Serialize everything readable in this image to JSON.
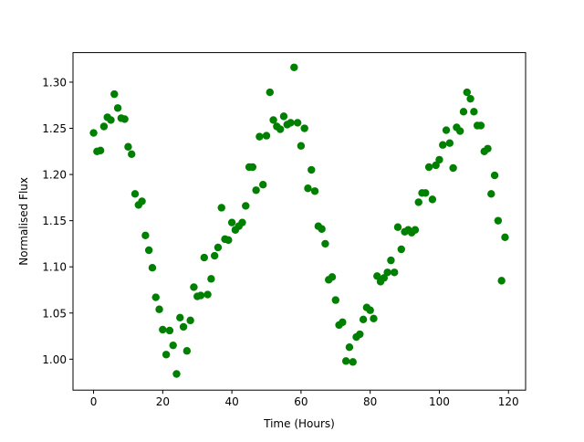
{
  "chart_data": {
    "type": "scatter",
    "title": "",
    "xlabel": "Time (Hours)",
    "ylabel": "Normalised Flux",
    "xlim": [
      -5.95,
      124.95
    ],
    "ylim": [
      0.9665,
      1.332
    ],
    "xticks": [
      0,
      20,
      40,
      60,
      80,
      100,
      120
    ],
    "yticks": [
      1.0,
      1.05,
      1.1,
      1.15,
      1.2,
      1.25,
      1.3
    ],
    "ytick_labels": [
      "1.00",
      "1.05",
      "1.10",
      "1.15",
      "1.20",
      "1.25",
      "1.30"
    ],
    "grid": false,
    "legend": "none",
    "marker_color": "#008000",
    "series": [
      {
        "x": [
          0,
          1,
          2,
          3,
          4,
          5,
          6,
          7,
          8,
          9,
          10,
          11,
          12,
          13,
          14,
          15,
          16,
          17,
          18,
          19,
          20,
          21,
          22,
          23,
          24,
          25,
          26,
          27,
          28,
          29,
          30,
          31,
          32,
          33,
          34,
          35,
          36,
          37,
          38,
          39,
          40,
          41,
          42,
          43,
          44,
          45,
          46,
          47,
          48,
          49,
          50,
          51,
          52,
          53,
          54,
          55,
          56,
          57,
          58,
          59,
          60,
          61,
          62,
          63,
          64,
          65,
          66,
          67,
          68,
          69,
          70,
          71,
          72,
          73,
          74,
          75,
          76,
          77,
          78,
          79,
          80,
          81,
          82,
          83,
          84,
          85,
          86,
          87,
          88,
          89,
          90,
          91,
          92,
          93,
          94,
          95,
          96,
          97,
          98,
          99,
          100,
          101,
          102,
          103,
          104,
          105,
          106,
          107,
          108,
          109,
          110,
          111,
          112,
          113,
          114,
          115,
          116,
          117,
          118,
          119
        ],
        "y": [
          1.245,
          1.225,
          1.226,
          1.252,
          1.262,
          1.259,
          1.287,
          1.272,
          1.261,
          1.26,
          1.23,
          1.222,
          1.179,
          1.167,
          1.171,
          1.134,
          1.118,
          1.099,
          1.067,
          1.054,
          1.032,
          1.005,
          1.031,
          1.015,
          0.984,
          1.045,
          1.035,
          1.009,
          1.042,
          1.078,
          1.068,
          1.069,
          1.11,
          1.07,
          1.087,
          1.112,
          1.121,
          1.164,
          1.13,
          1.129,
          1.148,
          1.14,
          1.144,
          1.148,
          1.166,
          1.208,
          1.208,
          1.183,
          1.241,
          1.189,
          1.242,
          1.289,
          1.259,
          1.252,
          1.249,
          1.263,
          1.254,
          1.256,
          1.316,
          1.256,
          1.231,
          1.25,
          1.185,
          1.205,
          1.182,
          1.144,
          1.141,
          1.125,
          1.086,
          1.089,
          1.064,
          1.037,
          1.04,
          0.998,
          1.013,
          0.997,
          1.024,
          1.027,
          1.043,
          1.056,
          1.053,
          1.044,
          1.09,
          1.084,
          1.088,
          1.094,
          1.107,
          1.094,
          1.143,
          1.119,
          1.138,
          1.14,
          1.137,
          1.14,
          1.17,
          1.18,
          1.18,
          1.208,
          1.173,
          1.21,
          1.216,
          1.232,
          1.248,
          1.234,
          1.207,
          1.251,
          1.247,
          1.268,
          1.289,
          1.282,
          1.268,
          1.253,
          1.253,
          1.225,
          1.228,
          1.179,
          1.199,
          1.15,
          1.085,
          1.132
        ]
      }
    ]
  }
}
